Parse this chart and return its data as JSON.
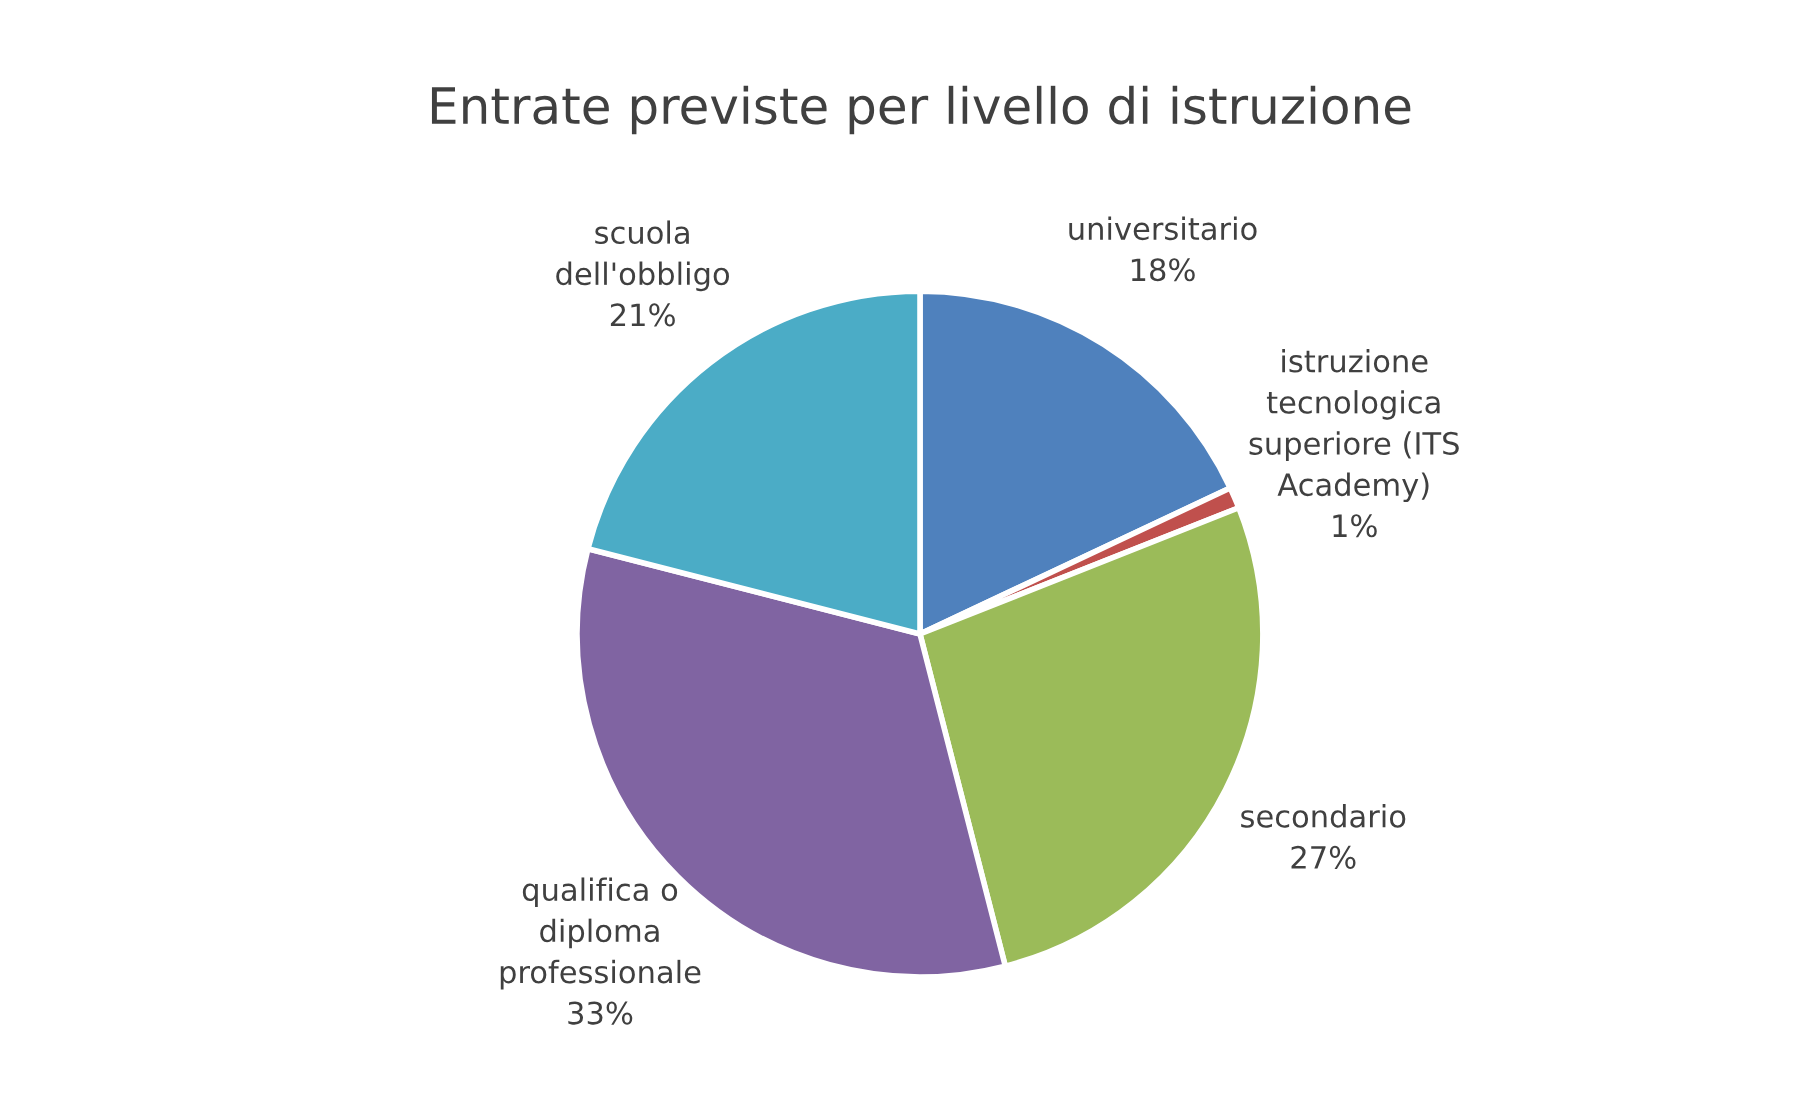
{
  "chart_data": {
    "type": "pie",
    "title": "Entrate previste per livello di istruzione",
    "categories": [
      "universitario",
      "istruzione\ntecnologica\nsuperiore (ITS\nAcademy)",
      "secondario",
      "qualifica o\ndiploma\nprofessionale",
      "scuola\ndell'obbligo"
    ],
    "values": [
      18,
      1,
      27,
      33,
      21
    ],
    "value_labels": [
      "18%",
      "1%",
      "27%",
      "33%",
      "21%"
    ],
    "colors": [
      "#4f81bd",
      "#c0504d",
      "#9bbb59",
      "#8064a2",
      "#4bacc6"
    ],
    "legend": false
  }
}
